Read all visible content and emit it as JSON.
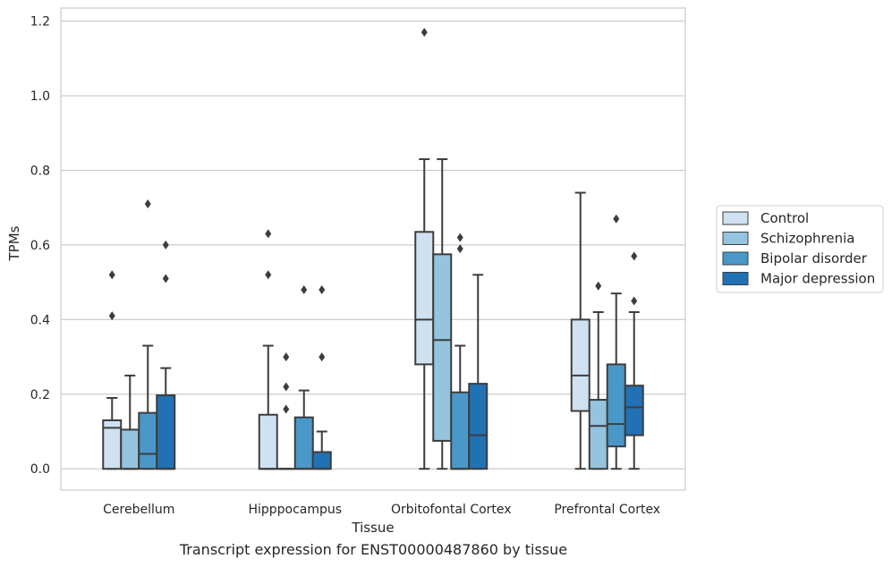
{
  "caption": "Transcript expression for ENST00000487860 by tissue",
  "colors": {
    "Control": "#d0e1f2",
    "Schizophrenia": "#94c4df",
    "Bipolar disorder": "#4a98c9",
    "Major depression": "#2171b5",
    "edge": "#3d3d3d",
    "grid": "#cccccc",
    "frame": "#cccccc"
  },
  "chart_data": {
    "type": "box",
    "title": "",
    "xlabel": "Tissue",
    "ylabel": "TPMs",
    "ylim": [
      -0.057,
      1.235
    ],
    "yticks": [
      0.0,
      0.2,
      0.4,
      0.6,
      0.8,
      1.0,
      1.2
    ],
    "ytick_labels": [
      "0.0",
      "0.2",
      "0.4",
      "0.6",
      "0.8",
      "1.0",
      "1.2"
    ],
    "grid": "horizontal",
    "legend_position": "right",
    "categories": [
      "Cerebellum",
      "Hipppocampus",
      "Orbitofontal Cortex",
      "Prefrontal Cortex"
    ],
    "series": [
      {
        "name": "Control",
        "boxes": [
          {
            "whislo": 0.0,
            "q1": 0.0,
            "med": 0.11,
            "q3": 0.13,
            "whishi": 0.19,
            "fliers": [
              0.41,
              0.52
            ]
          },
          {
            "whislo": 0.0,
            "q1": 0.0,
            "med": 0.0,
            "q3": 0.145,
            "whishi": 0.33,
            "fliers": [
              0.52,
              0.63
            ]
          },
          {
            "whislo": 0.0,
            "q1": 0.28,
            "med": 0.4,
            "q3": 0.635,
            "whishi": 0.83,
            "fliers": [
              1.17
            ]
          },
          {
            "whislo": 0.0,
            "q1": 0.155,
            "med": 0.25,
            "q3": 0.4,
            "whishi": 0.74,
            "fliers": []
          }
        ]
      },
      {
        "name": "Schizophrenia",
        "boxes": [
          {
            "whislo": 0.0,
            "q1": 0.0,
            "med": 0.0,
            "q3": 0.105,
            "whishi": 0.25,
            "fliers": []
          },
          {
            "whislo": 0.0,
            "q1": 0.0,
            "med": 0.0,
            "q3": 0.0,
            "whishi": 0.0,
            "fliers": [
              0.16,
              0.22,
              0.3
            ]
          },
          {
            "whislo": 0.0,
            "q1": 0.075,
            "med": 0.345,
            "q3": 0.575,
            "whishi": 0.83,
            "fliers": []
          },
          {
            "whislo": 0.0,
            "q1": 0.0,
            "med": 0.115,
            "q3": 0.185,
            "whishi": 0.42,
            "fliers": [
              0.49
            ]
          }
        ]
      },
      {
        "name": "Bipolar disorder",
        "boxes": [
          {
            "whislo": 0.0,
            "q1": 0.0,
            "med": 0.04,
            "q3": 0.15,
            "whishi": 0.33,
            "fliers": [
              0.71
            ]
          },
          {
            "whislo": 0.0,
            "q1": 0.0,
            "med": 0.0,
            "q3": 0.138,
            "whishi": 0.21,
            "fliers": [
              0.48
            ]
          },
          {
            "whislo": 0.0,
            "q1": 0.0,
            "med": 0.0,
            "q3": 0.205,
            "whishi": 0.33,
            "fliers": [
              0.59,
              0.62
            ]
          },
          {
            "whislo": 0.0,
            "q1": 0.06,
            "med": 0.12,
            "q3": 0.28,
            "whishi": 0.47,
            "fliers": [
              0.67
            ]
          }
        ]
      },
      {
        "name": "Major depression",
        "boxes": [
          {
            "whislo": 0.0,
            "q1": 0.0,
            "med": 0.0,
            "q3": 0.197,
            "whishi": 0.27,
            "fliers": [
              0.51,
              0.6
            ]
          },
          {
            "whislo": 0.0,
            "q1": 0.0,
            "med": 0.0,
            "q3": 0.045,
            "whishi": 0.1,
            "fliers": [
              0.3,
              0.48
            ]
          },
          {
            "whislo": 0.0,
            "q1": 0.0,
            "med": 0.09,
            "q3": 0.228,
            "whishi": 0.52,
            "fliers": []
          },
          {
            "whislo": 0.0,
            "q1": 0.09,
            "med": 0.165,
            "q3": 0.223,
            "whishi": 0.42,
            "fliers": [
              0.45,
              0.57
            ]
          }
        ]
      }
    ]
  }
}
